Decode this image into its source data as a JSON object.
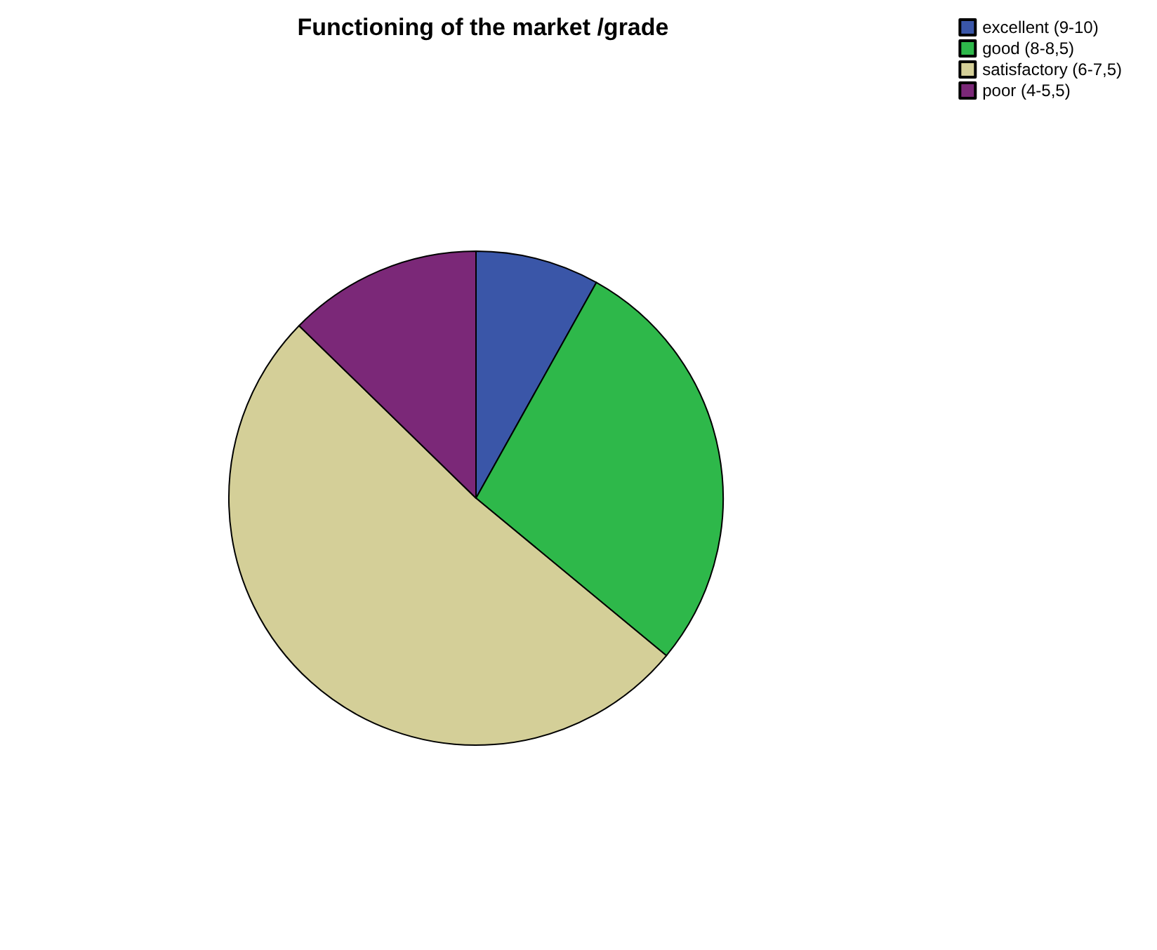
{
  "chart_data": {
    "type": "pie",
    "title": "Functioning of the market /grade",
    "categories": [
      "excellent (9-10)",
      "good (8-8,5)",
      "satisfactory (6-7,5)",
      "poor (4-5,5)"
    ],
    "values": [
      8.1,
      27.9,
      51.3,
      12.7
    ],
    "colors": [
      "#3a56a8",
      "#2eb84a",
      "#d4cf98",
      "#7b2878"
    ],
    "legend": "top right"
  }
}
